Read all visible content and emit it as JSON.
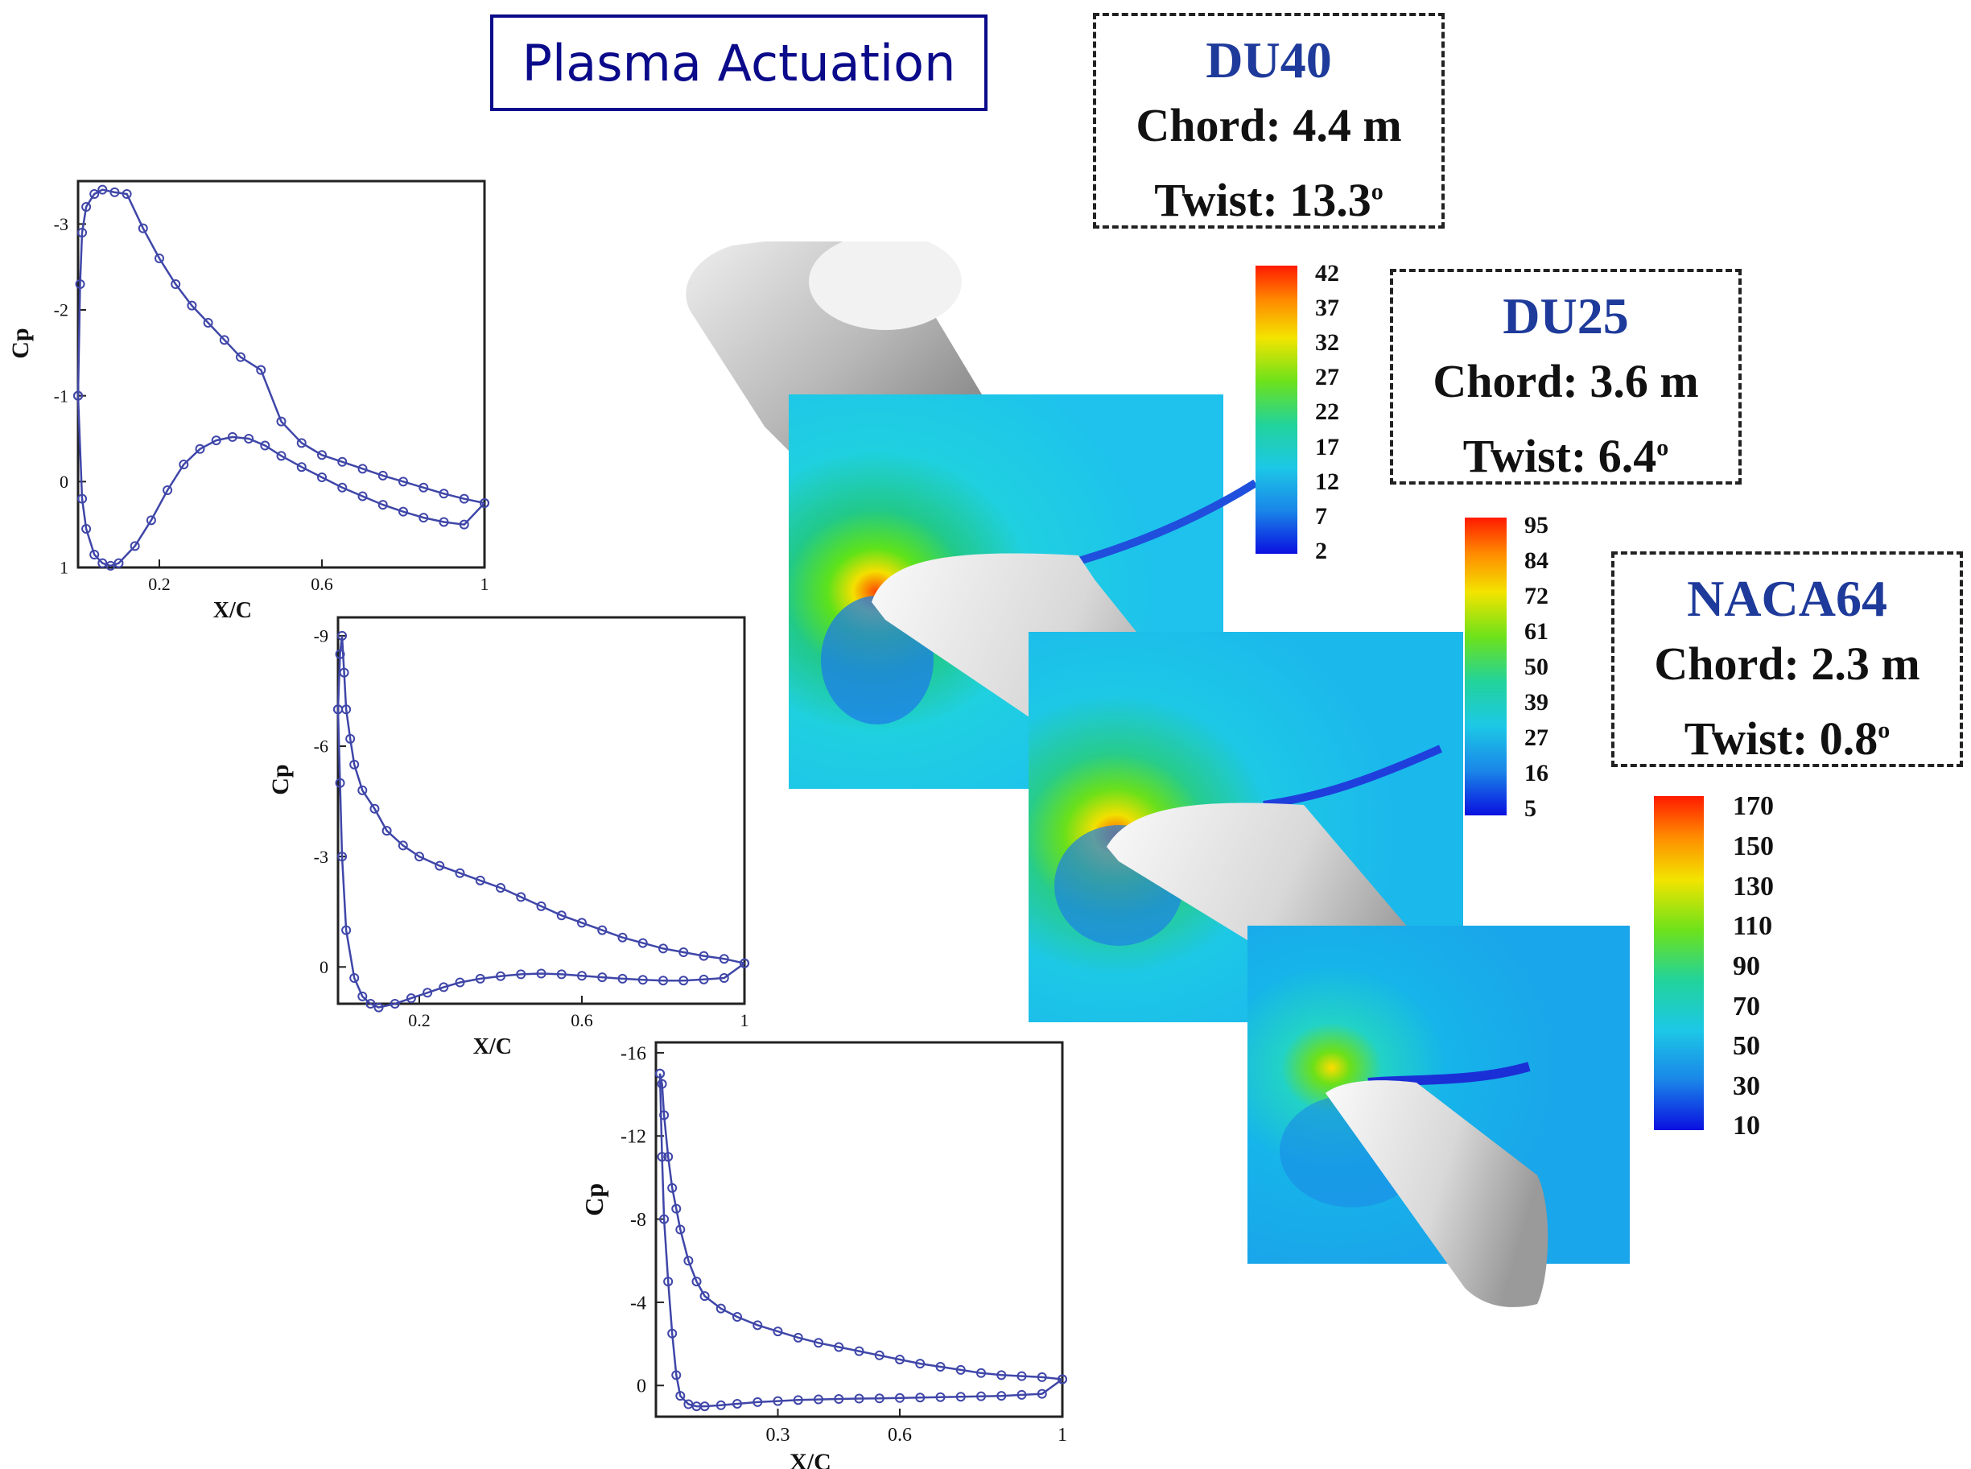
{
  "title": "Plasma Actuation",
  "sections": [
    {
      "name": "DU40",
      "chord": "Chord: 4.4 m",
      "twist": "Twist: 13.3",
      "deg": "o"
    },
    {
      "name": "DU25",
      "chord": "Chord: 3.6 m",
      "twist": "Twist: 6.4",
      "deg": "o"
    },
    {
      "name": "NACA64",
      "chord": "Chord: 2.3 m",
      "twist": "Twist: 0.8",
      "deg": "o"
    }
  ],
  "colorbars": [
    {
      "ticks": [
        "42",
        "37",
        "32",
        "27",
        "22",
        "17",
        "12",
        "7",
        "2"
      ]
    },
    {
      "ticks": [
        "95",
        "84",
        "72",
        "61",
        "50",
        "39",
        "27",
        "16",
        "5"
      ]
    },
    {
      "ticks": [
        "170",
        "150",
        "130",
        "110",
        "90",
        "70",
        "50",
        "30",
        "10"
      ]
    }
  ],
  "chart_data": [
    {
      "type": "line",
      "xlabel": "X/C",
      "ylabel": "Cp",
      "xlim": [
        0,
        1
      ],
      "ylim": [
        1,
        -3.5
      ],
      "xticks": [
        0.2,
        0.6,
        1
      ],
      "xtick_labels": [
        "0.2",
        "0.6",
        "1"
      ],
      "yticks": [
        -3,
        -2,
        -1,
        0,
        1
      ],
      "ytick_labels": [
        "-3",
        "-2",
        "-1",
        "0",
        "1"
      ],
      "series": [
        {
          "x": [
            1,
            0.95,
            0.9,
            0.85,
            0.8,
            0.75,
            0.7,
            0.65,
            0.6,
            0.55,
            0.5,
            0.45,
            0.4,
            0.36,
            0.32,
            0.28,
            0.24,
            0.2,
            0.16,
            0.12,
            0.09,
            0.06,
            0.04,
            0.02,
            0.01,
            0.005,
            0
          ],
          "y": [
            0.25,
            0.2,
            0.14,
            0.07,
            0,
            -0.07,
            -0.15,
            -0.23,
            -0.31,
            -0.45,
            -0.7,
            -1.3,
            -1.45,
            -1.65,
            -1.85,
            -2.05,
            -2.3,
            -2.6,
            -2.95,
            -3.35,
            -3.37,
            -3.4,
            -3.35,
            -3.2,
            -2.9,
            -2.3,
            -1.0
          ]
        },
        {
          "x": [
            0,
            0.01,
            0.02,
            0.04,
            0.06,
            0.08,
            0.1,
            0.14,
            0.18,
            0.22,
            0.26,
            0.3,
            0.34,
            0.38,
            0.42,
            0.46,
            0.5,
            0.55,
            0.6,
            0.65,
            0.7,
            0.75,
            0.8,
            0.85,
            0.9,
            0.95,
            1
          ],
          "y": [
            -1.0,
            0.2,
            0.55,
            0.85,
            0.95,
            0.98,
            0.95,
            0.75,
            0.45,
            0.1,
            -0.2,
            -0.38,
            -0.48,
            -0.52,
            -0.5,
            -0.42,
            -0.3,
            -0.17,
            -0.05,
            0.07,
            0.17,
            0.27,
            0.35,
            0.42,
            0.47,
            0.5,
            0.25
          ]
        }
      ]
    },
    {
      "type": "line",
      "xlabel": "X/C",
      "ylabel": "Cp",
      "xlim": [
        0,
        1
      ],
      "ylim": [
        1,
        -9.5
      ],
      "xticks": [
        0.2,
        0.6,
        1
      ],
      "xtick_labels": [
        "0.2",
        "0.6",
        "1"
      ],
      "yticks": [
        -9,
        -6,
        -3,
        0
      ],
      "ytick_labels": [
        "-9",
        "-6",
        "-3",
        "0"
      ],
      "series": [
        {
          "x": [
            1,
            0.95,
            0.9,
            0.85,
            0.8,
            0.75,
            0.7,
            0.65,
            0.6,
            0.55,
            0.5,
            0.45,
            0.4,
            0.35,
            0.3,
            0.25,
            0.2,
            0.16,
            0.12,
            0.09,
            0.06,
            0.04,
            0.03,
            0.02,
            0.015,
            0.01,
            0.005,
            0
          ],
          "y": [
            -0.1,
            -0.22,
            -0.3,
            -0.4,
            -0.5,
            -0.65,
            -0.8,
            -1.0,
            -1.2,
            -1.4,
            -1.65,
            -1.9,
            -2.15,
            -2.35,
            -2.55,
            -2.75,
            -3.0,
            -3.3,
            -3.7,
            -4.3,
            -4.8,
            -5.5,
            -6.2,
            -7.0,
            -8.0,
            -9.0,
            -8.5,
            -7.0
          ]
        },
        {
          "x": [
            0,
            0.005,
            0.01,
            0.02,
            0.04,
            0.06,
            0.08,
            0.1,
            0.14,
            0.18,
            0.22,
            0.26,
            0.3,
            0.35,
            0.4,
            0.45,
            0.5,
            0.55,
            0.6,
            0.65,
            0.7,
            0.75,
            0.8,
            0.85,
            0.9,
            0.95,
            1
          ],
          "y": [
            -7.0,
            -5.0,
            -3.0,
            -1.0,
            0.3,
            0.8,
            1.0,
            1.1,
            1.0,
            0.85,
            0.7,
            0.55,
            0.42,
            0.32,
            0.25,
            0.2,
            0.18,
            0.2,
            0.24,
            0.28,
            0.32,
            0.35,
            0.37,
            0.37,
            0.34,
            0.3,
            -0.1
          ]
        }
      ]
    },
    {
      "type": "line",
      "xlabel": "X/C",
      "ylabel": "Cp",
      "xlim": [
        0,
        1
      ],
      "ylim": [
        1.5,
        -16.5
      ],
      "xticks": [
        0.3,
        0.6,
        1
      ],
      "xtick_labels": [
        "0.3",
        "0.6",
        "1"
      ],
      "yticks": [
        -16,
        -12,
        -8,
        -4,
        0
      ],
      "ytick_labels": [
        "-16",
        "-12",
        "-8",
        "-4",
        "0"
      ],
      "series": [
        {
          "x": [
            1,
            0.95,
            0.9,
            0.85,
            0.8,
            0.75,
            0.7,
            0.65,
            0.6,
            0.55,
            0.5,
            0.45,
            0.4,
            0.35,
            0.3,
            0.25,
            0.2,
            0.16,
            0.12,
            0.1,
            0.08,
            0.06,
            0.05,
            0.04,
            0.03,
            0.02,
            0.015,
            0.01
          ],
          "y": [
            -0.3,
            -0.4,
            -0.45,
            -0.5,
            -0.6,
            -0.75,
            -0.9,
            -1.05,
            -1.25,
            -1.45,
            -1.65,
            -1.85,
            -2.05,
            -2.3,
            -2.6,
            -2.9,
            -3.3,
            -3.7,
            -4.3,
            -5.0,
            -6.0,
            -7.5,
            -8.5,
            -9.5,
            -11.0,
            -13.0,
            -14.5,
            -15.0
          ]
        },
        {
          "x": [
            0.01,
            0.015,
            0.02,
            0.03,
            0.04,
            0.05,
            0.06,
            0.08,
            0.1,
            0.12,
            0.16,
            0.2,
            0.25,
            0.3,
            0.35,
            0.4,
            0.45,
            0.5,
            0.55,
            0.6,
            0.65,
            0.7,
            0.75,
            0.8,
            0.85,
            0.9,
            0.95,
            1
          ],
          "y": [
            -15.0,
            -11.0,
            -8.0,
            -5.0,
            -2.5,
            -0.5,
            0.5,
            0.9,
            1.0,
            1.0,
            0.95,
            0.88,
            0.8,
            0.75,
            0.7,
            0.67,
            0.65,
            0.63,
            0.62,
            0.6,
            0.58,
            0.56,
            0.54,
            0.52,
            0.5,
            0.45,
            0.4,
            -0.3
          ]
        }
      ]
    }
  ]
}
